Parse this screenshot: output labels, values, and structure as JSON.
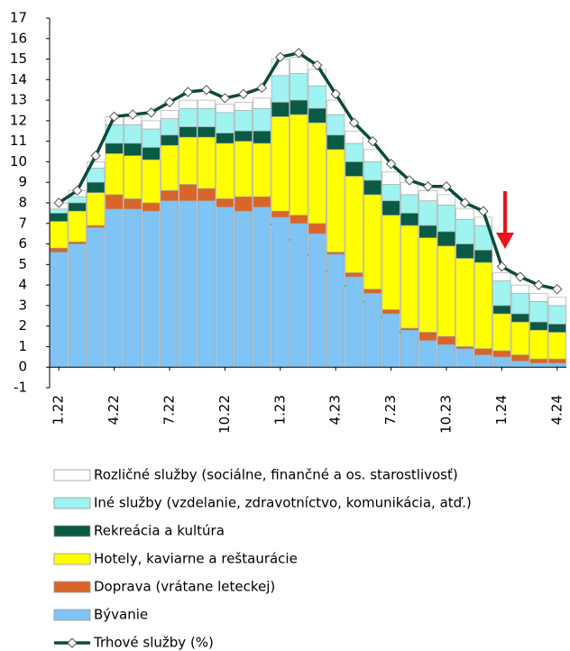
{
  "chart_data": {
    "type": "stacked_bar",
    "categories": [
      "1.22",
      null,
      null,
      "4.22",
      null,
      null,
      "7.22",
      null,
      null,
      "10.22",
      null,
      null,
      "1.23",
      null,
      null,
      "4.23",
      null,
      null,
      "7.23",
      null,
      null,
      "10.23",
      null,
      null,
      "1.24",
      null,
      null,
      "4.24"
    ],
    "series": [
      {
        "name": "Bývanie",
        "color": "#7fc4f4",
        "values": [
          5.6,
          6.0,
          6.8,
          7.7,
          7.7,
          7.6,
          8.1,
          8.1,
          8.1,
          7.8,
          7.6,
          7.8,
          7.3,
          7.0,
          6.5,
          5.5,
          4.4,
          3.6,
          2.6,
          1.8,
          1.3,
          1.1,
          0.9,
          0.6,
          0.5,
          0.3,
          0.2,
          0.2
        ]
      },
      {
        "name": "Doprava (vrátane leteckej)",
        "color": "#d9652a",
        "values": [
          0.2,
          0.1,
          0.1,
          0.7,
          0.5,
          0.4,
          0.5,
          0.8,
          0.6,
          0.4,
          0.7,
          0.5,
          0.3,
          0.4,
          0.5,
          0.1,
          0.2,
          0.2,
          0.2,
          0.1,
          0.4,
          0.4,
          0.1,
          0.3,
          0.3,
          0.3,
          0.2,
          0.2
        ]
      },
      {
        "name": "Hotely, kaviarne a reštaurácie",
        "color": "#ffff00",
        "values": [
          1.3,
          1.5,
          1.6,
          2.0,
          2.1,
          2.1,
          2.2,
          2.3,
          2.5,
          2.7,
          2.7,
          2.6,
          4.6,
          4.9,
          4.9,
          5.0,
          4.7,
          4.6,
          4.6,
          5.0,
          4.6,
          4.4,
          4.3,
          4.2,
          1.8,
          1.6,
          1.4,
          1.3
        ]
      },
      {
        "name": "Rekreácia a kultúra",
        "color": "#0a5a44",
        "values": [
          0.4,
          0.4,
          0.5,
          0.5,
          0.6,
          0.6,
          0.5,
          0.5,
          0.5,
          0.5,
          0.5,
          0.6,
          0.7,
          0.7,
          0.7,
          0.7,
          0.7,
          0.7,
          0.7,
          0.6,
          0.6,
          0.7,
          0.7,
          0.6,
          0.4,
          0.4,
          0.4,
          0.4
        ]
      },
      {
        "name": "Iné služby (vzdelanie, zdravotníctvo, komunikácia, atď.)",
        "color": "#9ff3f0",
        "values": [
          0.2,
          0.3,
          0.7,
          0.9,
          0.9,
          0.9,
          0.8,
          0.9,
          0.9,
          1.0,
          1.0,
          1.1,
          1.3,
          1.3,
          1.1,
          1.0,
          0.9,
          0.9,
          0.8,
          0.9,
          1.2,
          1.3,
          1.2,
          1.2,
          1.2,
          1.0,
          1.0,
          0.9
        ]
      },
      {
        "name": "Rozličné služby (sociálne, finančné a os. starostlivosť)",
        "color": "#ffffff",
        "values": [
          0.3,
          0.3,
          0.3,
          0.4,
          0.4,
          0.4,
          0.4,
          0.4,
          0.4,
          0.4,
          0.4,
          0.5,
          0.8,
          0.8,
          0.8,
          0.7,
          0.6,
          0.6,
          0.6,
          0.6,
          0.5,
          0.5,
          0.5,
          0.4,
          0.4,
          0.4,
          0.4,
          0.4
        ]
      }
    ],
    "line": {
      "name": "Trhové služby (%)",
      "color": "#0b4a3a",
      "values": [
        8.0,
        8.6,
        10.3,
        12.2,
        12.3,
        12.4,
        12.9,
        13.4,
        13.5,
        13.1,
        13.3,
        13.6,
        15.1,
        15.3,
        14.7,
        13.3,
        11.9,
        11.0,
        9.9,
        9.1,
        8.8,
        8.8,
        8.0,
        7.6,
        4.9,
        4.4,
        4.0,
        3.8
      ]
    },
    "ylim": [
      -1,
      17
    ],
    "yticks": [
      -1,
      0,
      1,
      2,
      3,
      4,
      5,
      6,
      7,
      8,
      9,
      10,
      11,
      12,
      13,
      14,
      15,
      16,
      17
    ]
  }
}
